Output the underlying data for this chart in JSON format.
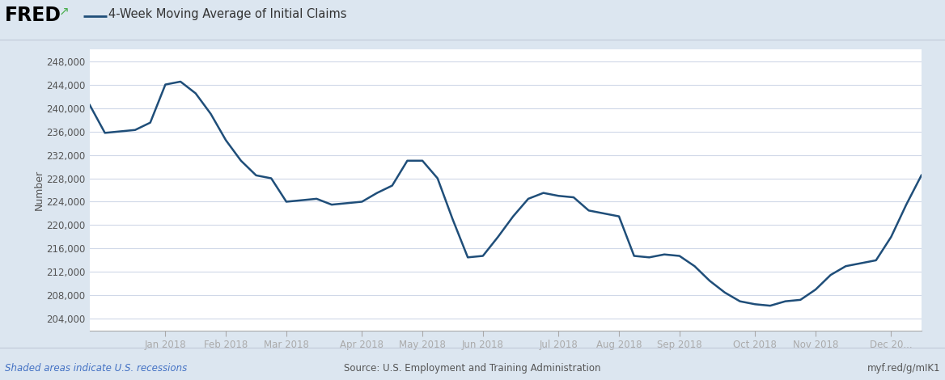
{
  "title": "4-Week Moving Average of Initial Claims",
  "ylabel": "Number",
  "fig_background_color": "#dce6f0",
  "plot_background_color": "#ffffff",
  "line_color": "#1f4e79",
  "line_width": 1.8,
  "yticks": [
    204000,
    208000,
    212000,
    216000,
    220000,
    224000,
    228000,
    232000,
    236000,
    240000,
    244000,
    248000
  ],
  "ylim": [
    202000,
    250000
  ],
  "footer_left": "Shaded areas indicate U.S. recessions",
  "footer_center": "Source: U.S. Employment and Training Administration",
  "footer_right": "myf.red/g/mIK1",
  "values": [
    240500,
    235750,
    236000,
    236250,
    237500,
    244000,
    244500,
    242500,
    239000,
    234500,
    231000,
    228500,
    228000,
    224000,
    224250,
    224500,
    223500,
    223750,
    224000,
    225500,
    226750,
    231000,
    231000,
    228000,
    221000,
    214500,
    214750,
    218000,
    221500,
    224500,
    225500,
    225000,
    224750,
    222500,
    222000,
    221500,
    214750,
    214500,
    215000,
    214750,
    213000,
    210500,
    208500,
    207000,
    206500,
    206250,
    207000,
    207250,
    209000,
    211500,
    213000,
    213500,
    214000,
    218000,
    223500,
    228500
  ],
  "xtick_labels": [
    "Jan 2018",
    "Feb 2018",
    "Mar 2018",
    "Apr 2018",
    "May 2018",
    "Jun 2018",
    "Jul 2018",
    "Aug 2018",
    "Sep 2018",
    "Oct 2018",
    "Nov 2018",
    "Dec 20..."
  ],
  "xtick_positions": [
    5,
    9,
    13,
    18,
    22,
    26,
    31,
    35,
    39,
    44,
    48,
    53
  ]
}
